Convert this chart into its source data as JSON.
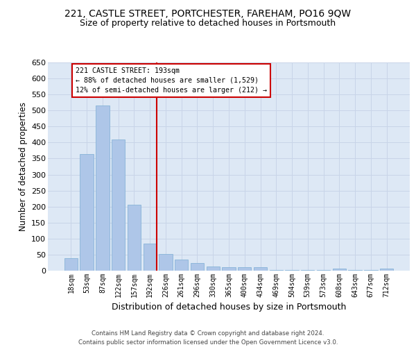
{
  "title": "221, CASTLE STREET, PORTCHESTER, FAREHAM, PO16 9QW",
  "subtitle": "Size of property relative to detached houses in Portsmouth",
  "xlabel": "Distribution of detached houses by size in Portsmouth",
  "ylabel": "Number of detached properties",
  "categories": [
    "18sqm",
    "53sqm",
    "87sqm",
    "122sqm",
    "157sqm",
    "192sqm",
    "226sqm",
    "261sqm",
    "296sqm",
    "330sqm",
    "365sqm",
    "400sqm",
    "434sqm",
    "469sqm",
    "504sqm",
    "539sqm",
    "573sqm",
    "608sqm",
    "643sqm",
    "677sqm",
    "712sqm"
  ],
  "values": [
    38,
    365,
    515,
    410,
    205,
    85,
    53,
    35,
    23,
    12,
    10,
    10,
    10,
    3,
    3,
    3,
    3,
    7,
    2,
    3,
    7
  ],
  "bar_color": "#aec6e8",
  "bar_edgecolor": "#7badd4",
  "grid_color": "#c8d4e8",
  "bg_color": "#dde8f5",
  "marker_line_color": "#cc0000",
  "annotation_line1": "221 CASTLE STREET: 193sqm",
  "annotation_line2": "← 88% of detached houses are smaller (1,529)",
  "annotation_line3": "12% of semi-detached houses are larger (212) →",
  "annotation_box_color": "#ffffff",
  "annotation_box_edgecolor": "#cc0000",
  "footer1": "Contains HM Land Registry data © Crown copyright and database right 2024.",
  "footer2": "Contains public sector information licensed under the Open Government Licence v3.0.",
  "ylim": [
    0,
    650
  ],
  "yticks": [
    0,
    50,
    100,
    150,
    200,
    250,
    300,
    350,
    400,
    450,
    500,
    550,
    600,
    650
  ],
  "title_fontsize": 10,
  "subtitle_fontsize": 9,
  "xlabel_fontsize": 9,
  "ylabel_fontsize": 8.5,
  "tick_fontsize": 8,
  "xtick_fontsize": 7
}
